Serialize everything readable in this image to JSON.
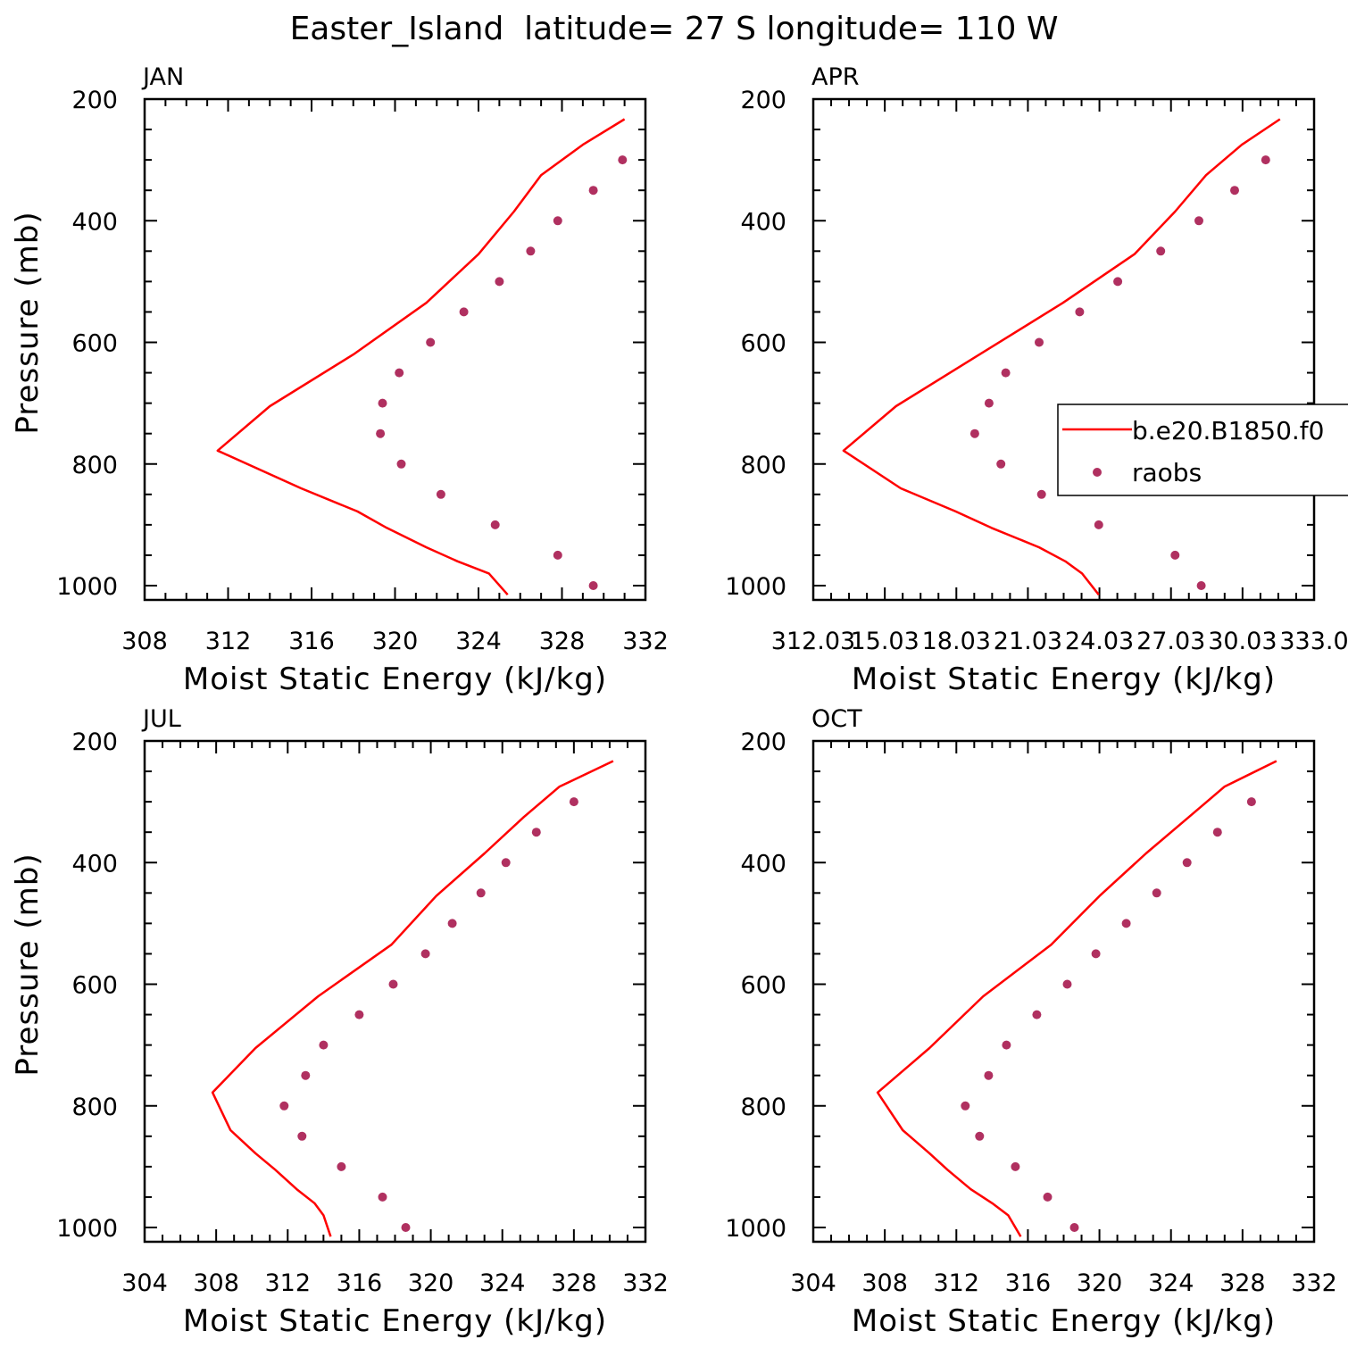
{
  "title": "Easter_Island  latitude= 27 S longitude= 110 W",
  "colors": {
    "model": "#ff0000",
    "obs": "#b03060",
    "axis": "#000000"
  },
  "legend": {
    "placement": "right edge of APR panel",
    "items": [
      {
        "label": "b.e20.B1850.f0",
        "style": "line"
      },
      {
        "label": "raobs",
        "style": "marker"
      }
    ]
  },
  "chart_data": [
    {
      "type": "line",
      "panel": "JAN",
      "xlabel": "Moist Static Energy (kJ/kg)",
      "ylabel": "Pressure (mb)",
      "xlim": [
        308,
        332
      ],
      "ylim": [
        1000,
        200
      ],
      "xticks": [
        "308",
        "312",
        "316",
        "320",
        "324",
        "328",
        "332"
      ],
      "yticks": [
        "200",
        "400",
        "600",
        "800",
        "1000"
      ],
      "series": [
        {
          "name": "b.e20.B1850.f0",
          "style": "line",
          "x": [
            331.0,
            329.0,
            327.0,
            325.7,
            324.0,
            321.5,
            318.0,
            314.0,
            311.5,
            315.5,
            318.2,
            319.6,
            321.5,
            323.0,
            324.5,
            325.4
          ],
          "y": [
            233,
            275,
            325,
            385,
            455,
            535,
            620,
            705,
            778,
            840,
            878,
            905,
            937,
            960,
            980,
            1015
          ]
        },
        {
          "name": "raobs",
          "style": "marker",
          "x": [
            330.9,
            329.5,
            327.8,
            326.5,
            325.0,
            323.3,
            321.7,
            320.2,
            319.4,
            319.3,
            320.3,
            322.2,
            324.8,
            327.8,
            329.5
          ],
          "y": [
            300,
            350,
            400,
            450,
            500,
            550,
            600,
            650,
            700,
            750,
            800,
            850,
            900,
            950,
            1000
          ]
        }
      ]
    },
    {
      "type": "line",
      "panel": "APR",
      "xlabel": "Moist Static Energy (kJ/kg)",
      "ylabel": "",
      "xlim": [
        312.03,
        333.03
      ],
      "ylim": [
        1000,
        200
      ],
      "xticks": [
        "312.03",
        "15.03",
        "18.03",
        "21.03",
        "24.03",
        "27.03",
        "30.03",
        "333.0"
      ],
      "yticks": [
        "200",
        "400",
        "600",
        "800",
        "1000"
      ],
      "series": [
        {
          "name": "b.e20.B1850.f0",
          "style": "line",
          "x": [
            331.6,
            330.0,
            328.5,
            327.2,
            325.5,
            322.5,
            319.0,
            315.5,
            313.3,
            315.7,
            318.0,
            319.5,
            321.5,
            322.6,
            323.3,
            324.0
          ],
          "y": [
            233,
            275,
            325,
            385,
            455,
            535,
            620,
            705,
            778,
            840,
            878,
            905,
            937,
            960,
            980,
            1015
          ]
        },
        {
          "name": "raobs",
          "style": "marker",
          "x": [
            331.0,
            329.7,
            328.2,
            326.6,
            324.8,
            323.2,
            321.5,
            320.1,
            319.4,
            318.8,
            319.9,
            321.6,
            324.0,
            327.2,
            328.3
          ],
          "y": [
            300,
            350,
            400,
            450,
            500,
            550,
            600,
            650,
            700,
            750,
            800,
            850,
            900,
            950,
            1000
          ]
        }
      ]
    },
    {
      "type": "line",
      "panel": "JUL",
      "xlabel": "Moist Static Energy (kJ/kg)",
      "ylabel": "Pressure (mb)",
      "xlim": [
        304,
        332
      ],
      "ylim": [
        1000,
        200
      ],
      "xticks": [
        "304",
        "308",
        "312",
        "316",
        "320",
        "324",
        "328",
        "332"
      ],
      "yticks": [
        "200",
        "400",
        "600",
        "800",
        "1000"
      ],
      "series": [
        {
          "name": "b.e20.B1850.f0",
          "style": "line",
          "x": [
            330.2,
            327.2,
            325.2,
            323.0,
            320.3,
            317.8,
            313.7,
            310.2,
            307.8,
            308.8,
            310.2,
            311.3,
            312.5,
            313.5,
            314.0,
            314.4
          ],
          "y": [
            233,
            275,
            325,
            385,
            455,
            535,
            620,
            705,
            778,
            840,
            878,
            905,
            937,
            960,
            980,
            1015
          ]
        },
        {
          "name": "raobs",
          "style": "marker",
          "x": [
            328.0,
            325.9,
            324.2,
            322.8,
            321.2,
            319.7,
            317.9,
            316.0,
            314.0,
            313.0,
            311.8,
            312.8,
            315.0,
            317.3,
            318.6
          ],
          "y": [
            300,
            350,
            400,
            450,
            500,
            550,
            600,
            650,
            700,
            750,
            800,
            850,
            900,
            950,
            1000
          ]
        }
      ]
    },
    {
      "type": "line",
      "panel": "OCT",
      "xlabel": "Moist Static Energy (kJ/kg)",
      "ylabel": "",
      "xlim": [
        304,
        332
      ],
      "ylim": [
        1000,
        200
      ],
      "xticks": [
        "304",
        "308",
        "312",
        "316",
        "320",
        "324",
        "328",
        "332"
      ],
      "yticks": [
        "200",
        "400",
        "600",
        "800",
        "1000"
      ],
      "series": [
        {
          "name": "b.e20.B1850.f0",
          "style": "line",
          "x": [
            329.9,
            327.0,
            325.0,
            322.6,
            320.0,
            317.3,
            313.5,
            310.5,
            307.6,
            309.0,
            310.5,
            311.5,
            312.8,
            314.0,
            314.9,
            315.6
          ],
          "y": [
            233,
            275,
            325,
            385,
            455,
            535,
            620,
            705,
            778,
            840,
            878,
            905,
            937,
            960,
            980,
            1015
          ]
        },
        {
          "name": "raobs",
          "style": "marker",
          "x": [
            328.5,
            326.6,
            324.9,
            323.2,
            321.5,
            319.8,
            318.2,
            316.5,
            314.8,
            313.8,
            312.5,
            313.3,
            315.3,
            317.1,
            318.6
          ],
          "y": [
            300,
            350,
            400,
            450,
            500,
            550,
            600,
            650,
            700,
            750,
            800,
            850,
            900,
            950,
            1000
          ]
        }
      ]
    }
  ]
}
